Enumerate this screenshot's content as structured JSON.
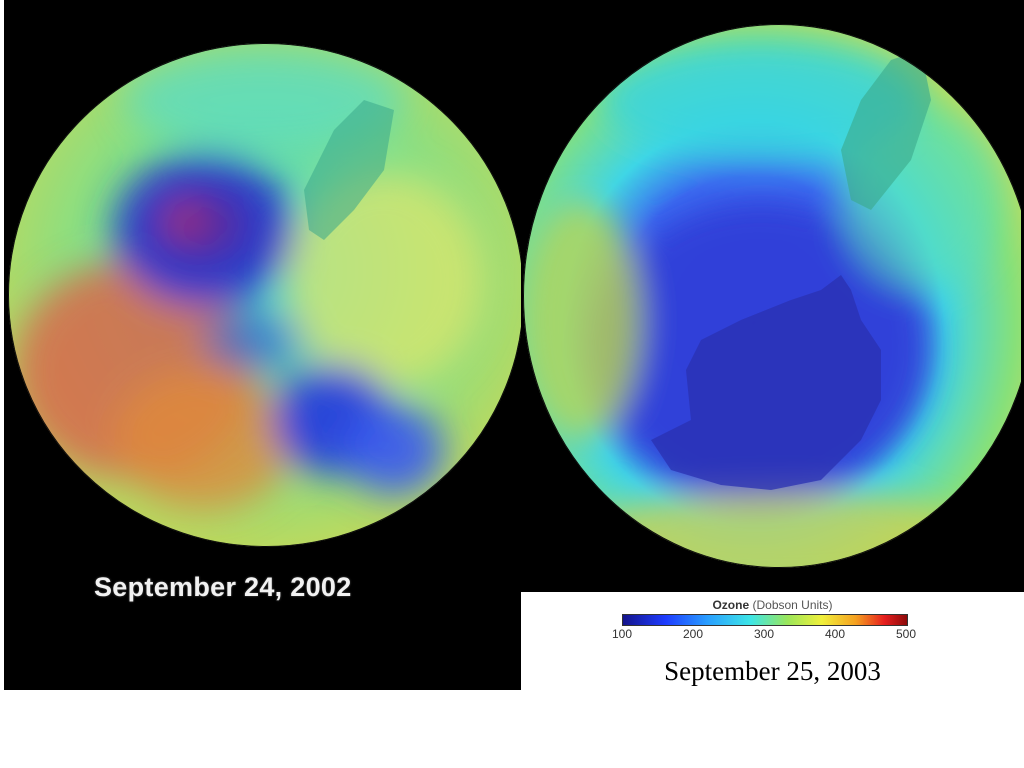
{
  "left_panel": {
    "caption": "September 24, 2002"
  },
  "right_panel": {
    "caption": "September 25, 2003",
    "legend": {
      "title": "Ozone",
      "units": "(Dobson Units)",
      "ticks": [
        "100",
        "200",
        "300",
        "400",
        "500"
      ]
    }
  },
  "colors": {
    "background": "#000000",
    "ozone_low": "#1e1ea0",
    "ozone_mid": "#3ee6e6",
    "ozone_high": "#e61e1e"
  }
}
